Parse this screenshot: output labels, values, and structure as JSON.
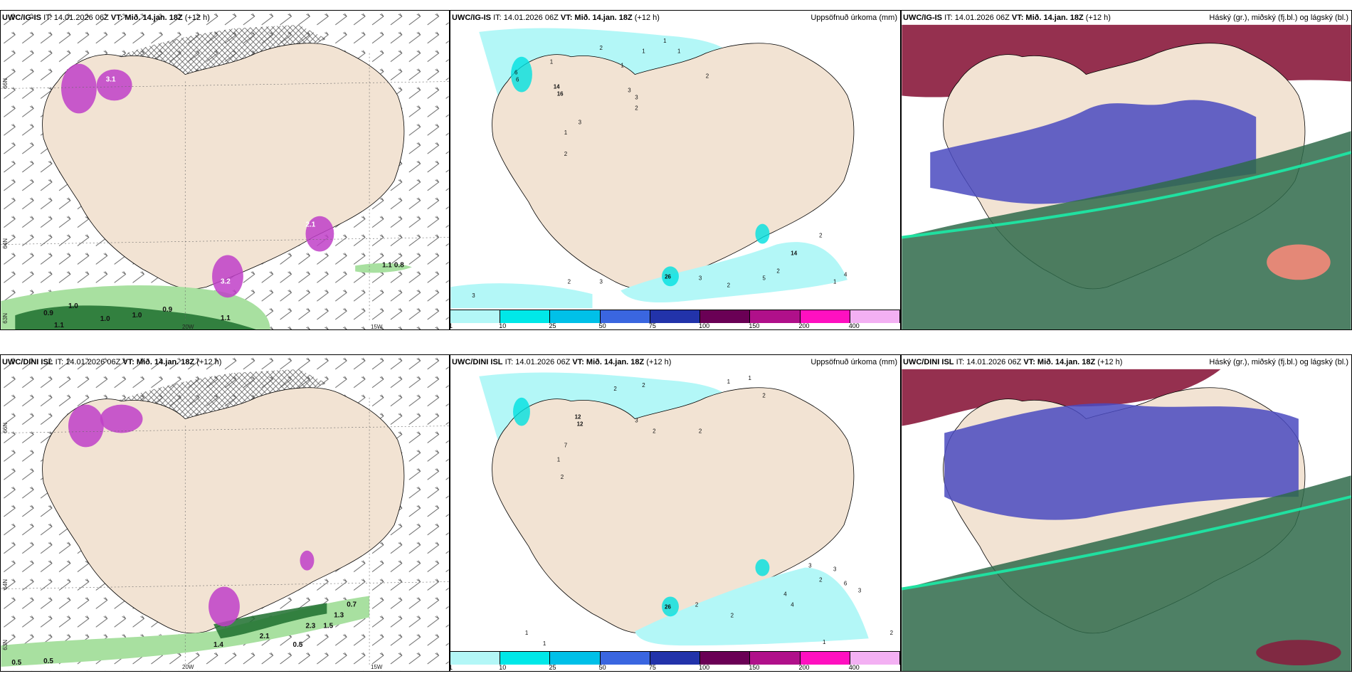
{
  "common": {
    "issue": "IT: 14.01.2026 06Z",
    "vt_label": "VT:",
    "vt_value": "Mið. 14.jan. 18Z",
    "lead": "(+12 h)"
  },
  "rows": [
    {
      "model": "UWC/IG-IS"
    },
    {
      "model": "UWC/DINI ISL"
    }
  ],
  "panels": {
    "precip_title": "Uppsöfnuð úrkoma (mm)",
    "cloud_title": "Háský (gr.), miðský (fj.bl.) og lágský (bl.)"
  },
  "axes": {
    "lat_66": "66N",
    "lat_64": "64N",
    "lat_63": "63N",
    "lon_20": "20W",
    "lon_15": "15W"
  },
  "legend": {
    "ticks": [
      "1",
      "10",
      "25",
      "50",
      "75",
      "100",
      "150",
      "200",
      "400"
    ],
    "colors": [
      "#b3f7f7",
      "#00e8e8",
      "#00c0e8",
      "#3a66e0",
      "#2233aa",
      "#6a0055",
      "#b0108a",
      "#ff10c0",
      "#f3b0f3"
    ]
  },
  "colors": {
    "land": "#f2e3d3",
    "precip_light": "#b3f7f7",
    "precip_mid": "#00e0e0",
    "snow_purple": "#c040c8",
    "green_dark": "#1d6e2e",
    "green_light": "#a8e0a0",
    "cloud_high": "#8a1a3c",
    "cloud_mid": "#4a4ac0",
    "cloud_low": "#2f6a4a"
  },
  "labels": {
    "r1_wind": [
      "0.9",
      "1.0",
      "1.1",
      "1.0",
      "1.0",
      "0.9",
      "1.1",
      "1.1",
      "0.8",
      "2.1",
      "3.2",
      "3.1"
    ],
    "r1_precip": [
      "1",
      "2",
      "1",
      "1",
      "1",
      "1",
      "3",
      "3",
      "2",
      "2",
      "14",
      "16",
      "6",
      "6",
      "2",
      "1",
      "3",
      "3",
      "2",
      "3",
      "2",
      "5",
      "2",
      "1",
      "4",
      "3",
      "2",
      "14",
      "26"
    ],
    "r2_wind": [
      "0.5",
      "0.5",
      "0.7",
      "2.3",
      "0.5",
      "1.3",
      "1.4",
      "2.1",
      "1.5"
    ],
    "r2_precip": [
      "2",
      "2",
      "1",
      "1",
      "2",
      "12",
      "12",
      "7",
      "2",
      "1",
      "3",
      "2",
      "2",
      "3",
      "2",
      "4",
      "4",
      "1",
      "1",
      "3",
      "6",
      "3",
      "2",
      "1",
      "26",
      "2",
      "2"
    ]
  }
}
